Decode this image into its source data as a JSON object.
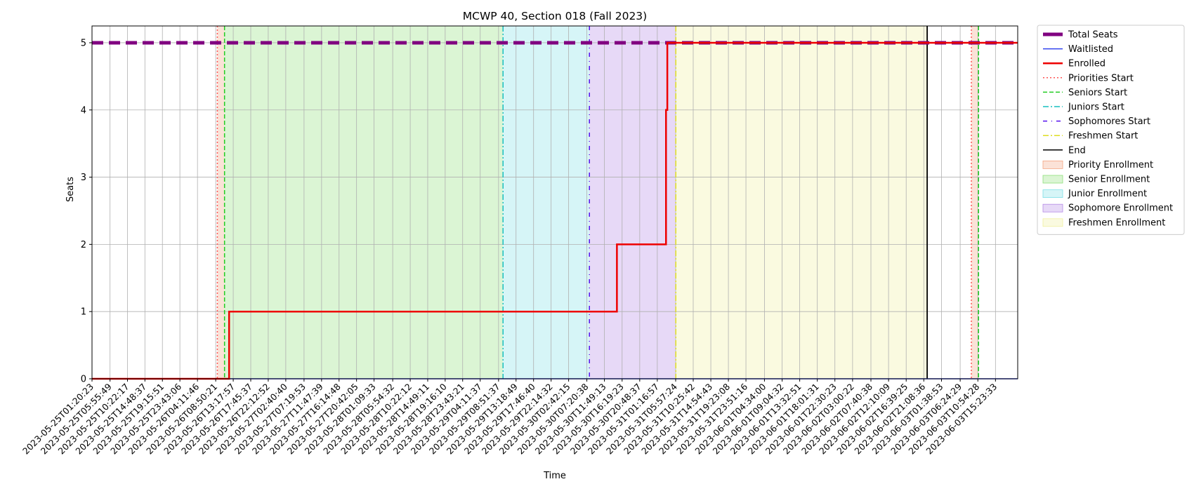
{
  "chart_data": {
    "type": "line",
    "title": "MCWP 40, Section 018 (Fall 2023)",
    "xlabel": "Time",
    "ylabel": "Seats",
    "xlim": [
      "2023-05-25T01:20:23",
      "2023-06-03T21:03:20"
    ],
    "ylim": [
      0,
      5.25
    ],
    "yticks": [
      0,
      1,
      2,
      3,
      4,
      5
    ],
    "grid": true,
    "legend_position": "outside-right-top",
    "xticks": [
      "2023-05-25T01:20:23",
      "2023-05-25T05:55:49",
      "2023-05-25T10:22:17",
      "2023-05-25T14:48:37",
      "2023-05-25T19:15:51",
      "2023-05-25T23:43:06",
      "2023-05-26T04:11:46",
      "2023-05-26T08:50:21",
      "2023-05-26T13:17:57",
      "2023-05-26T17:45:37",
      "2023-05-26T22:12:52",
      "2023-05-27T02:40:40",
      "2023-05-27T07:19:53",
      "2023-05-27T11:47:39",
      "2023-05-27T16:14:48",
      "2023-05-27T20:42:05",
      "2023-05-28T01:09:33",
      "2023-05-28T05:54:32",
      "2023-05-28T10:22:12",
      "2023-05-28T14:49:11",
      "2023-05-28T19:16:10",
      "2023-05-28T23:43:21",
      "2023-05-29T04:11:37",
      "2023-05-29T08:51:37",
      "2023-05-29T13:18:49",
      "2023-05-29T17:46:40",
      "2023-05-29T22:14:32",
      "2023-05-30T02:42:15",
      "2023-05-30T07:20:38",
      "2023-05-30T11:49:13",
      "2023-05-30T16:19:23",
      "2023-05-30T20:48:37",
      "2023-05-31T01:16:57",
      "2023-05-31T05:57:24",
      "2023-05-31T10:25:42",
      "2023-05-31T14:54:43",
      "2023-05-31T19:23:08",
      "2023-05-31T23:51:16",
      "2023-06-01T04:34:00",
      "2023-06-01T09:04:32",
      "2023-06-01T13:32:51",
      "2023-06-01T18:01:31",
      "2023-06-01T22:30:23",
      "2023-06-02T03:00:22",
      "2023-06-02T07:40:38",
      "2023-06-02T12:10:09",
      "2023-06-02T16:39:25",
      "2023-06-02T21:08:36",
      "2023-06-03T01:38:53",
      "2023-06-03T06:24:29",
      "2023-06-03T10:54:28",
      "2023-06-03T15:23:33"
    ],
    "regions": [
      {
        "name": "Priority Enrollment",
        "start": "2023-05-26T09:15:00",
        "end": "2023-05-26T11:05:00",
        "color": "#f4a582"
      },
      {
        "name": "Senior Enrollment",
        "start": "2023-05-26T11:05:00",
        "end": "2023-05-29T10:00:00",
        "color": "#8ee07a"
      },
      {
        "name": "Junior Enrollment",
        "start": "2023-05-29T10:00:00",
        "end": "2023-05-30T08:00:00",
        "color": "#7fe0e6"
      },
      {
        "name": "Sophomore Enrollment",
        "start": "2023-05-30T08:00:00",
        "end": "2023-05-31T06:00:00",
        "color": "#b58ae6"
      },
      {
        "name": "Freshmen Enrollment",
        "start": "2023-05-31T06:00:00",
        "end": "2023-06-02T22:00:00",
        "color": "#f0f0a0"
      },
      {
        "name": "Priority Enrollment",
        "start": "2023-06-03T09:15:00",
        "end": "2023-06-03T11:05:00",
        "color": "#f4a582"
      }
    ],
    "vlines": [
      {
        "name": "Priorities Start",
        "x": "2023-05-26T09:15:00",
        "color": "#ff5555",
        "dash": "2,3"
      },
      {
        "name": "Seniors Start",
        "x": "2023-05-26T11:05:00",
        "color": "#22cc22",
        "dash": "6,3"
      },
      {
        "name": "Juniors Start",
        "x": "2023-05-29T10:00:00",
        "color": "#17bfbf",
        "dash": "8,3,2,3"
      },
      {
        "name": "Sophomores Start",
        "x": "2023-05-30T08:00:00",
        "color": "#5511ee",
        "dash": "6,6,1,6"
      },
      {
        "name": "Freshmen Start",
        "x": "2023-05-31T06:00:00",
        "color": "#dddd22",
        "dash": "8,3,2,3"
      },
      {
        "name": "End",
        "x": "2023-06-02T22:00:00",
        "color": "#000000",
        "dash": ""
      },
      {
        "name": "Priorities Start",
        "x": "2023-06-03T09:15:00",
        "color": "#ff5555",
        "dash": "2,3"
      },
      {
        "name": "Seniors Start",
        "x": "2023-06-03T11:05:00",
        "color": "#22cc22",
        "dash": "6,3"
      }
    ],
    "series": [
      {
        "name": "Total Seats",
        "color": "#800080",
        "style": "dashed",
        "points": [
          [
            "2023-05-25T01:20:23",
            5
          ],
          [
            "2023-06-03T21:03:20",
            5
          ]
        ]
      },
      {
        "name": "Waitlisted",
        "color": "#3344ee",
        "style": "solid",
        "points": [
          [
            "2023-05-25T01:20:23",
            0
          ],
          [
            "2023-06-03T21:03:20",
            0
          ]
        ]
      },
      {
        "name": "Enrolled",
        "color": "#ee0000",
        "style": "solid",
        "points": [
          [
            "2023-05-25T01:20:23",
            0
          ],
          [
            "2023-05-26T12:15:00",
            0
          ],
          [
            "2023-05-26T12:15:00",
            1
          ],
          [
            "2023-05-30T15:00:00",
            1
          ],
          [
            "2023-05-30T15:00:00",
            2
          ],
          [
            "2023-05-31T03:30:00",
            2
          ],
          [
            "2023-05-31T03:30:00",
            4
          ],
          [
            "2023-05-31T03:50:00",
            4
          ],
          [
            "2023-05-31T03:50:00",
            5
          ],
          [
            "2023-06-03T21:03:20",
            5
          ]
        ]
      }
    ],
    "legend": [
      {
        "label": "Total Seats",
        "kind": "line",
        "color": "#800080",
        "width": 5,
        "dash": ""
      },
      {
        "label": "Waitlisted",
        "kind": "line",
        "color": "#3344ee",
        "width": 1.5,
        "dash": ""
      },
      {
        "label": "Enrolled",
        "kind": "line",
        "color": "#ee0000",
        "width": 2.5,
        "dash": ""
      },
      {
        "label": "Priorities Start",
        "kind": "line",
        "color": "#ff5555",
        "width": 1.5,
        "dash": "2,3"
      },
      {
        "label": "Seniors Start",
        "kind": "line",
        "color": "#22cc22",
        "width": 1.5,
        "dash": "6,3"
      },
      {
        "label": "Juniors Start",
        "kind": "line",
        "color": "#17bfbf",
        "width": 1.5,
        "dash": "8,3,2,3"
      },
      {
        "label": "Sophomores Start",
        "kind": "line",
        "color": "#5511ee",
        "width": 1.5,
        "dash": "6,6,1,6"
      },
      {
        "label": "Freshmen Start",
        "kind": "line",
        "color": "#dddd22",
        "width": 1.5,
        "dash": "8,3,2,3"
      },
      {
        "label": "End",
        "kind": "line",
        "color": "#000000",
        "width": 1.5,
        "dash": ""
      },
      {
        "label": "Priority Enrollment",
        "kind": "patch",
        "color": "#f4a582"
      },
      {
        "label": "Senior Enrollment",
        "kind": "patch",
        "color": "#8ee07a"
      },
      {
        "label": "Junior Enrollment",
        "kind": "patch",
        "color": "#7fe0e6"
      },
      {
        "label": "Sophomore Enrollment",
        "kind": "patch",
        "color": "#b58ae6"
      },
      {
        "label": "Freshmen Enrollment",
        "kind": "patch",
        "color": "#f0f0a0"
      }
    ]
  }
}
